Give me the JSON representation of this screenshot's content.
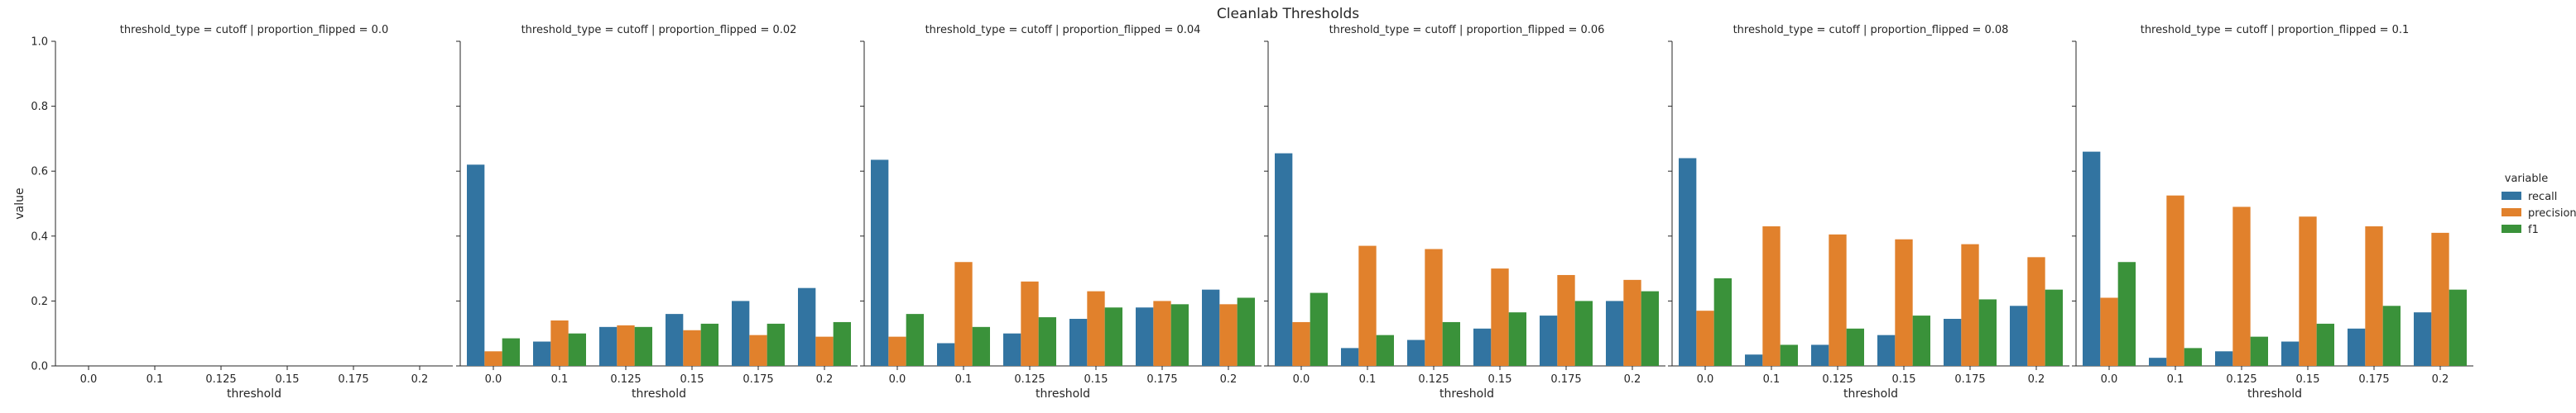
{
  "chart_data": {
    "type": "bar",
    "title": "Cleanlab Thresholds",
    "xlabel": "threshold",
    "ylabel": "value",
    "ylim": [
      0,
      1.0
    ],
    "yticks": [
      "0.0",
      "0.2",
      "0.4",
      "0.6",
      "0.8",
      "1.0"
    ],
    "categories": [
      "0.0",
      "0.1",
      "0.125",
      "0.15",
      "0.175",
      "0.2"
    ],
    "legend": {
      "title": "variable",
      "position": "right",
      "entries": [
        "recall",
        "precision",
        "f1"
      ]
    },
    "colors": [
      "#3274a1",
      "#e1812c",
      "#3a923a"
    ],
    "panels": [
      {
        "title": "threshold_type = cutoff | proportion_flipped = 0.0",
        "series": [
          {
            "name": "recall",
            "values": [
              0,
              0,
              0,
              0,
              0,
              0
            ]
          },
          {
            "name": "precision",
            "values": [
              0,
              0,
              0,
              0,
              0,
              0
            ]
          },
          {
            "name": "f1",
            "values": [
              0,
              0,
              0,
              0,
              0,
              0
            ]
          }
        ]
      },
      {
        "title": "threshold_type = cutoff | proportion_flipped = 0.02",
        "series": [
          {
            "name": "recall",
            "values": [
              0.62,
              0.075,
              0.12,
              0.16,
              0.2,
              0.24
            ]
          },
          {
            "name": "precision",
            "values": [
              0.045,
              0.14,
              0.125,
              0.11,
              0.095,
              0.09
            ]
          },
          {
            "name": "f1",
            "values": [
              0.085,
              0.1,
              0.12,
              0.13,
              0.13,
              0.135
            ]
          }
        ]
      },
      {
        "title": "threshold_type = cutoff | proportion_flipped = 0.04",
        "series": [
          {
            "name": "recall",
            "values": [
              0.635,
              0.07,
              0.1,
              0.145,
              0.18,
              0.235
            ]
          },
          {
            "name": "precision",
            "values": [
              0.09,
              0.32,
              0.26,
              0.23,
              0.2,
              0.19
            ]
          },
          {
            "name": "f1",
            "values": [
              0.16,
              0.12,
              0.15,
              0.18,
              0.19,
              0.21
            ]
          }
        ]
      },
      {
        "title": "threshold_type = cutoff | proportion_flipped = 0.06",
        "series": [
          {
            "name": "recall",
            "values": [
              0.655,
              0.055,
              0.08,
              0.115,
              0.155,
              0.2
            ]
          },
          {
            "name": "precision",
            "values": [
              0.135,
              0.37,
              0.36,
              0.3,
              0.28,
              0.265
            ]
          },
          {
            "name": "f1",
            "values": [
              0.225,
              0.095,
              0.135,
              0.165,
              0.2,
              0.23
            ]
          }
        ]
      },
      {
        "title": "threshold_type = cutoff | proportion_flipped = 0.08",
        "series": [
          {
            "name": "recall",
            "values": [
              0.64,
              0.035,
              0.065,
              0.095,
              0.145,
              0.185
            ]
          },
          {
            "name": "precision",
            "values": [
              0.17,
              0.43,
              0.405,
              0.39,
              0.375,
              0.335
            ]
          },
          {
            "name": "f1",
            "values": [
              0.27,
              0.065,
              0.115,
              0.155,
              0.205,
              0.235
            ]
          }
        ]
      },
      {
        "title": "threshold_type = cutoff | proportion_flipped = 0.1",
        "series": [
          {
            "name": "recall",
            "values": [
              0.66,
              0.025,
              0.045,
              0.075,
              0.115,
              0.165
            ]
          },
          {
            "name": "precision",
            "values": [
              0.21,
              0.525,
              0.49,
              0.46,
              0.43,
              0.41
            ]
          },
          {
            "name": "f1",
            "values": [
              0.32,
              0.055,
              0.09,
              0.13,
              0.185,
              0.235
            ]
          }
        ]
      }
    ]
  }
}
